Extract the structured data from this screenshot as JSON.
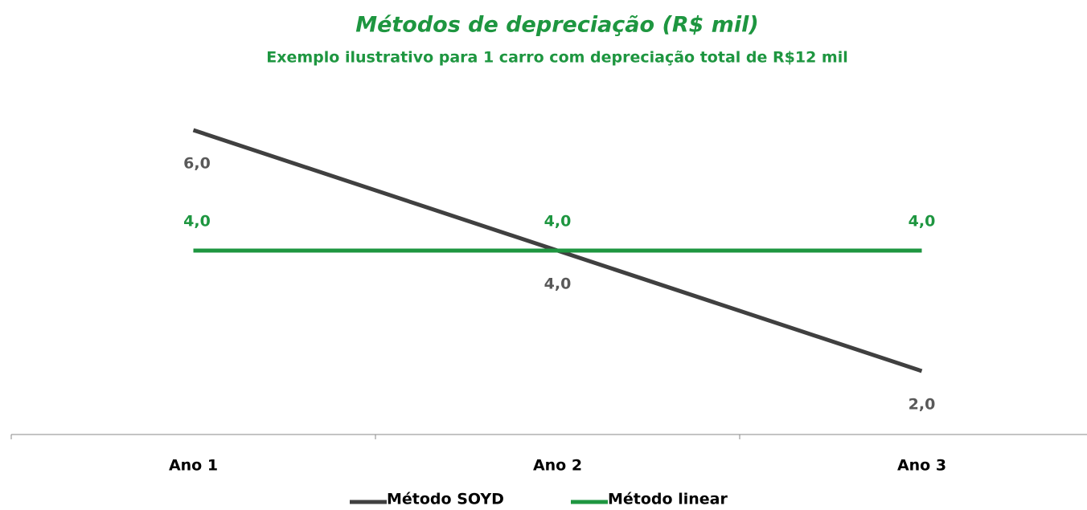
{
  "chart_data": {
    "type": "line",
    "title": "Métodos de depreciação (R$ mil)",
    "subtitle": "Exemplo ilustrativo para 1 carro com depreciação total de R$12 mil",
    "categories": [
      "Ano 1",
      "Ano 2",
      "Ano 3"
    ],
    "series": [
      {
        "name": "Método SOYD",
        "color": "#404040",
        "values": [
          6,
          4,
          2
        ],
        "value_labels": [
          "6,0",
          "4,0",
          "2,0"
        ]
      },
      {
        "name": "Método linear",
        "color": "#1e9640",
        "values": [
          4,
          4,
          4
        ],
        "value_labels": [
          "4,0",
          "4,0",
          "4,0"
        ]
      }
    ],
    "ylim": [
      1,
      7
    ]
  }
}
